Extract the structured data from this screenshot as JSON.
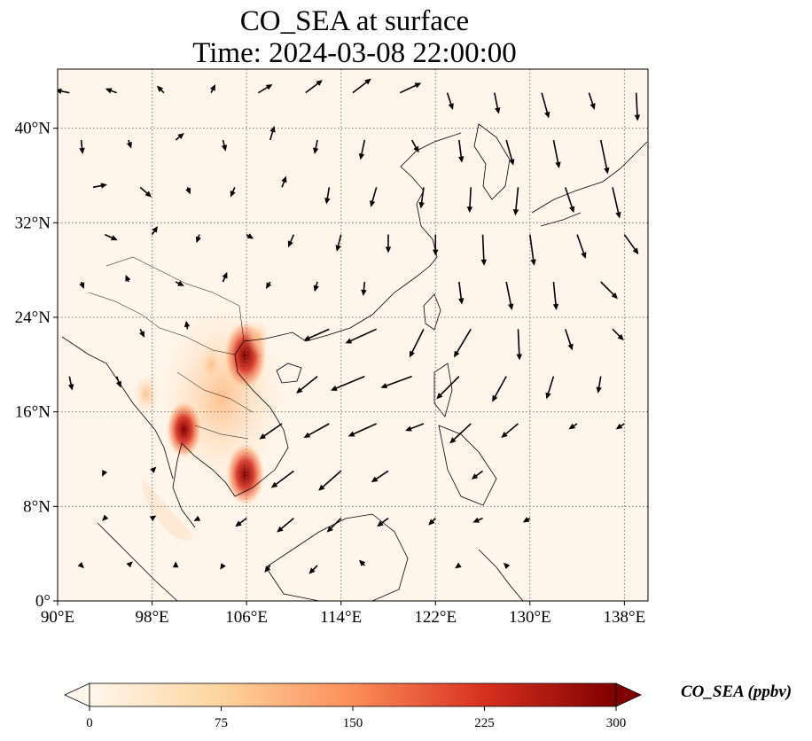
{
  "title": {
    "line1": "CO_SEA at surface",
    "line2": "Time: 2024-03-08 22:00:00"
  },
  "axes": {
    "lon_range": [
      90,
      140
    ],
    "lat_range": [
      0,
      45
    ],
    "lon_ticks": [
      {
        "value": 90,
        "label": "90°E"
      },
      {
        "value": 98,
        "label": "98°E"
      },
      {
        "value": 106,
        "label": "106°E"
      },
      {
        "value": 114,
        "label": "114°E"
      },
      {
        "value": 122,
        "label": "122°E"
      },
      {
        "value": 130,
        "label": "130°E"
      },
      {
        "value": 138,
        "label": "138°E"
      }
    ],
    "lat_ticks": [
      {
        "value": 0,
        "label": "0°"
      },
      {
        "value": 8,
        "label": "8°N"
      },
      {
        "value": 16,
        "label": "16°N"
      },
      {
        "value": 24,
        "label": "24°N"
      },
      {
        "value": 32,
        "label": "32°N"
      },
      {
        "value": 40,
        "label": "40°N"
      }
    ],
    "gridlines": "dotted"
  },
  "colorbar": {
    "label": "CO_SEA (ppbv)",
    "min": 0,
    "max": 300,
    "extend": "both",
    "colormap": "OrRd",
    "ticks": [
      {
        "value": 0,
        "label": "0"
      },
      {
        "value": 75,
        "label": "75"
      },
      {
        "value": 150,
        "label": "150"
      },
      {
        "value": 225,
        "label": "225"
      },
      {
        "value": 300,
        "label": "300"
      }
    ]
  },
  "colors": {
    "background_field": "#fff5ea",
    "coastline": "#000000",
    "grid": "#777777"
  },
  "hotspots": [
    {
      "name": "red-river-delta",
      "lon": 105.9,
      "lat": 20.8,
      "value": 300
    },
    {
      "name": "mekong-delta",
      "lon": 105.9,
      "lat": 10.7,
      "value": 260
    },
    {
      "name": "central-thailand",
      "lon": 100.7,
      "lat": 14.5,
      "value": 230
    },
    {
      "name": "north-laos",
      "lon": 103.0,
      "lat": 20.0,
      "value": 120
    },
    {
      "name": "myanmar-east",
      "lon": 97.5,
      "lat": 17.5,
      "value": 140
    },
    {
      "name": "guangxi",
      "lon": 107.0,
      "lat": 22.3,
      "value": 110
    }
  ],
  "wind_vectors": [
    {
      "lon": 91,
      "lat": 43,
      "u": -1,
      "v": 0.2
    },
    {
      "lon": 95,
      "lat": 43,
      "u": -0.8,
      "v": 0.3
    },
    {
      "lon": 99,
      "lat": 43,
      "u": -0.5,
      "v": 0.5
    },
    {
      "lon": 103,
      "lat": 43,
      "u": 0.3,
      "v": 0.6
    },
    {
      "lon": 107,
      "lat": 43,
      "u": 1,
      "v": 0.6
    },
    {
      "lon": 111,
      "lat": 43,
      "u": 1.2,
      "v": 0.9
    },
    {
      "lon": 115,
      "lat": 43,
      "u": 1.3,
      "v": 1
    },
    {
      "lon": 119,
      "lat": 43,
      "u": 1.5,
      "v": 0.7
    },
    {
      "lon": 123,
      "lat": 43,
      "u": 0.4,
      "v": -1.2
    },
    {
      "lon": 127,
      "lat": 43,
      "u": 0.3,
      "v": -1.5
    },
    {
      "lon": 131,
      "lat": 43,
      "u": 0.5,
      "v": -1.8
    },
    {
      "lon": 135,
      "lat": 43,
      "u": 0.4,
      "v": -1.2
    },
    {
      "lon": 139,
      "lat": 43,
      "u": 0.1,
      "v": -2
    },
    {
      "lon": 92,
      "lat": 39,
      "u": 0.1,
      "v": -1
    },
    {
      "lon": 96,
      "lat": 39,
      "u": 0.2,
      "v": -0.6
    },
    {
      "lon": 100,
      "lat": 39,
      "u": 0.6,
      "v": 0.5
    },
    {
      "lon": 104,
      "lat": 39,
      "u": 0.2,
      "v": -0.8
    },
    {
      "lon": 108,
      "lat": 39,
      "u": 0.3,
      "v": 1
    },
    {
      "lon": 112,
      "lat": 39,
      "u": -0.2,
      "v": -1
    },
    {
      "lon": 116,
      "lat": 39,
      "u": -0.3,
      "v": -1.4
    },
    {
      "lon": 120,
      "lat": 39,
      "u": 0.5,
      "v": -0.9
    },
    {
      "lon": 124,
      "lat": 39,
      "u": 0.2,
      "v": -1.6
    },
    {
      "lon": 128,
      "lat": 39,
      "u": 0.5,
      "v": -1.8
    },
    {
      "lon": 132,
      "lat": 39,
      "u": 0.4,
      "v": -2
    },
    {
      "lon": 136,
      "lat": 39,
      "u": 0.5,
      "v": -2.4
    },
    {
      "lon": 93,
      "lat": 35,
      "u": 1,
      "v": 0.2
    },
    {
      "lon": 97,
      "lat": 35,
      "u": 0.8,
      "v": -0.7
    },
    {
      "lon": 101,
      "lat": 35,
      "u": 0.2,
      "v": -0.5
    },
    {
      "lon": 105,
      "lat": 35,
      "u": -0.3,
      "v": -0.7
    },
    {
      "lon": 109,
      "lat": 35,
      "u": 0.3,
      "v": 0.8
    },
    {
      "lon": 113,
      "lat": 35,
      "u": -0.2,
      "v": -1.2
    },
    {
      "lon": 117,
      "lat": 35,
      "u": -0.4,
      "v": -1.4
    },
    {
      "lon": 121,
      "lat": 35,
      "u": -0.2,
      "v": -1.5
    },
    {
      "lon": 125,
      "lat": 35,
      "u": -0.1,
      "v": -1.8
    },
    {
      "lon": 129,
      "lat": 35,
      "u": -0.2,
      "v": -2
    },
    {
      "lon": 133,
      "lat": 35,
      "u": 0.6,
      "v": -1.8
    },
    {
      "lon": 137,
      "lat": 35,
      "u": 0.5,
      "v": -2.2
    },
    {
      "lon": 94,
      "lat": 31,
      "u": 0.9,
      "v": -0.4
    },
    {
      "lon": 98,
      "lat": 31,
      "u": 0.4,
      "v": 0.6
    },
    {
      "lon": 102,
      "lat": 31,
      "u": -0.2,
      "v": -0.6
    },
    {
      "lon": 106,
      "lat": 31,
      "u": 0.5,
      "v": -0.3
    },
    {
      "lon": 110,
      "lat": 31,
      "u": -0.4,
      "v": -0.9
    },
    {
      "lon": 114,
      "lat": 31,
      "u": -0.3,
      "v": -1.2
    },
    {
      "lon": 118,
      "lat": 31,
      "u": 0,
      "v": -1.3
    },
    {
      "lon": 122,
      "lat": 31,
      "u": 0,
      "v": -1.5
    },
    {
      "lon": 126,
      "lat": 31,
      "u": 0.1,
      "v": -2.2
    },
    {
      "lon": 130,
      "lat": 31,
      "u": 0.3,
      "v": -2.2
    },
    {
      "lon": 134,
      "lat": 31,
      "u": 0.6,
      "v": -1.7
    },
    {
      "lon": 138,
      "lat": 31,
      "u": 1,
      "v": -1.4
    },
    {
      "lon": 92,
      "lat": 27,
      "u": 0.2,
      "v": -0.5
    },
    {
      "lon": 96,
      "lat": 27,
      "u": -0.2,
      "v": 0.5
    },
    {
      "lon": 100,
      "lat": 27,
      "u": 0.6,
      "v": -0.3
    },
    {
      "lon": 104,
      "lat": 27,
      "u": 0.3,
      "v": 0.7
    },
    {
      "lon": 108,
      "lat": 27,
      "u": -0.3,
      "v": -0.5
    },
    {
      "lon": 112,
      "lat": 27,
      "u": -0.2,
      "v": -0.7
    },
    {
      "lon": 116,
      "lat": 27,
      "u": -0.1,
      "v": -1
    },
    {
      "lon": 124,
      "lat": 27,
      "u": 0.2,
      "v": -1.6
    },
    {
      "lon": 128,
      "lat": 27,
      "u": 0.4,
      "v": -2
    },
    {
      "lon": 132,
      "lat": 27,
      "u": 0.2,
      "v": -2
    },
    {
      "lon": 136,
      "lat": 27,
      "u": 1.2,
      "v": -1.2
    },
    {
      "lon": 97,
      "lat": 23,
      "u": 0.3,
      "v": -0.6
    },
    {
      "lon": 101,
      "lat": 23,
      "u": -0.1,
      "v": 0.6
    },
    {
      "lon": 113,
      "lat": 23,
      "u": -1.8,
      "v": -0.8
    },
    {
      "lon": 117,
      "lat": 23,
      "u": -2.2,
      "v": -1
    },
    {
      "lon": 121,
      "lat": 23,
      "u": -1,
      "v": -2
    },
    {
      "lon": 125,
      "lat": 23,
      "u": -1.2,
      "v": -2
    },
    {
      "lon": 129,
      "lat": 23,
      "u": 0.1,
      "v": -2.2
    },
    {
      "lon": 133,
      "lat": 23,
      "u": 0.5,
      "v": -1.5
    },
    {
      "lon": 137,
      "lat": 23,
      "u": 0.8,
      "v": -0.8
    },
    {
      "lon": 91,
      "lat": 19,
      "u": 0.2,
      "v": -1
    },
    {
      "lon": 95,
      "lat": 19,
      "u": 0.3,
      "v": -0.8
    },
    {
      "lon": 112,
      "lat": 19,
      "u": -1.5,
      "v": -1.2
    },
    {
      "lon": 116,
      "lat": 19,
      "u": -2.4,
      "v": -1
    },
    {
      "lon": 120,
      "lat": 19,
      "u": -2.2,
      "v": -0.8
    },
    {
      "lon": 124,
      "lat": 19,
      "u": -1.6,
      "v": -1.6
    },
    {
      "lon": 128,
      "lat": 19,
      "u": -1,
      "v": -1.8
    },
    {
      "lon": 132,
      "lat": 19,
      "u": -0.5,
      "v": -1.6
    },
    {
      "lon": 136,
      "lat": 19,
      "u": -0.2,
      "v": -1.2
    },
    {
      "lon": 109,
      "lat": 15,
      "u": -1.6,
      "v": -1.1
    },
    {
      "lon": 113,
      "lat": 15,
      "u": -1.8,
      "v": -1
    },
    {
      "lon": 117,
      "lat": 15,
      "u": -2,
      "v": -0.9
    },
    {
      "lon": 121,
      "lat": 15,
      "u": -1.3,
      "v": -0.5
    },
    {
      "lon": 125,
      "lat": 15,
      "u": -1.5,
      "v": -1.4
    },
    {
      "lon": 129,
      "lat": 15,
      "u": -1.2,
      "v": -1
    },
    {
      "lon": 134,
      "lat": 15,
      "u": -0.6,
      "v": -0.4
    },
    {
      "lon": 138,
      "lat": 15,
      "u": -0.6,
      "v": -0.4
    },
    {
      "lon": 94,
      "lat": 11,
      "u": -0.2,
      "v": -0.4
    },
    {
      "lon": 98,
      "lat": 11,
      "u": 0.3,
      "v": 0.3
    },
    {
      "lon": 110,
      "lat": 11,
      "u": -1.6,
      "v": -1.2
    },
    {
      "lon": 114,
      "lat": 11,
      "u": -1.6,
      "v": -1.4
    },
    {
      "lon": 118,
      "lat": 11,
      "u": -1.2,
      "v": -0.8
    },
    {
      "lon": 126,
      "lat": 11,
      "u": -0.8,
      "v": -0.6
    },
    {
      "lon": 94,
      "lat": 7,
      "u": -0.2,
      "v": -0.2
    },
    {
      "lon": 98,
      "lat": 7,
      "u": 0.3,
      "v": 0.2
    },
    {
      "lon": 102,
      "lat": 7,
      "u": -0.4,
      "v": -0.2
    },
    {
      "lon": 106,
      "lat": 7,
      "u": -0.8,
      "v": -0.6
    },
    {
      "lon": 110,
      "lat": 7,
      "u": -1.2,
      "v": -1
    },
    {
      "lon": 114,
      "lat": 7,
      "u": -1,
      "v": -1
    },
    {
      "lon": 118,
      "lat": 7,
      "u": -0.8,
      "v": -0.6
    },
    {
      "lon": 122,
      "lat": 7,
      "u": -0.5,
      "v": -0.5
    },
    {
      "lon": 126,
      "lat": 7,
      "u": -0.7,
      "v": -0.3
    },
    {
      "lon": 130,
      "lat": 7,
      "u": -0.5,
      "v": -0.3
    },
    {
      "lon": 92,
      "lat": 3,
      "u": 0.2,
      "v": -0.2
    },
    {
      "lon": 96,
      "lat": 3,
      "u": 0.3,
      "v": 0.3
    },
    {
      "lon": 100,
      "lat": 3,
      "u": 0,
      "v": 0.3
    },
    {
      "lon": 104,
      "lat": 3,
      "u": -0.2,
      "v": -0.3
    },
    {
      "lon": 108,
      "lat": 3,
      "u": -0.4,
      "v": -0.5
    },
    {
      "lon": 112,
      "lat": 3,
      "u": -0.6,
      "v": -0.6
    },
    {
      "lon": 116,
      "lat": 3,
      "u": -0.4,
      "v": 0.4
    },
    {
      "lon": 124,
      "lat": 3,
      "u": -0.3,
      "v": -0.2
    },
    {
      "lon": 128,
      "lat": 3,
      "u": -0.2,
      "v": 0.2
    }
  ]
}
